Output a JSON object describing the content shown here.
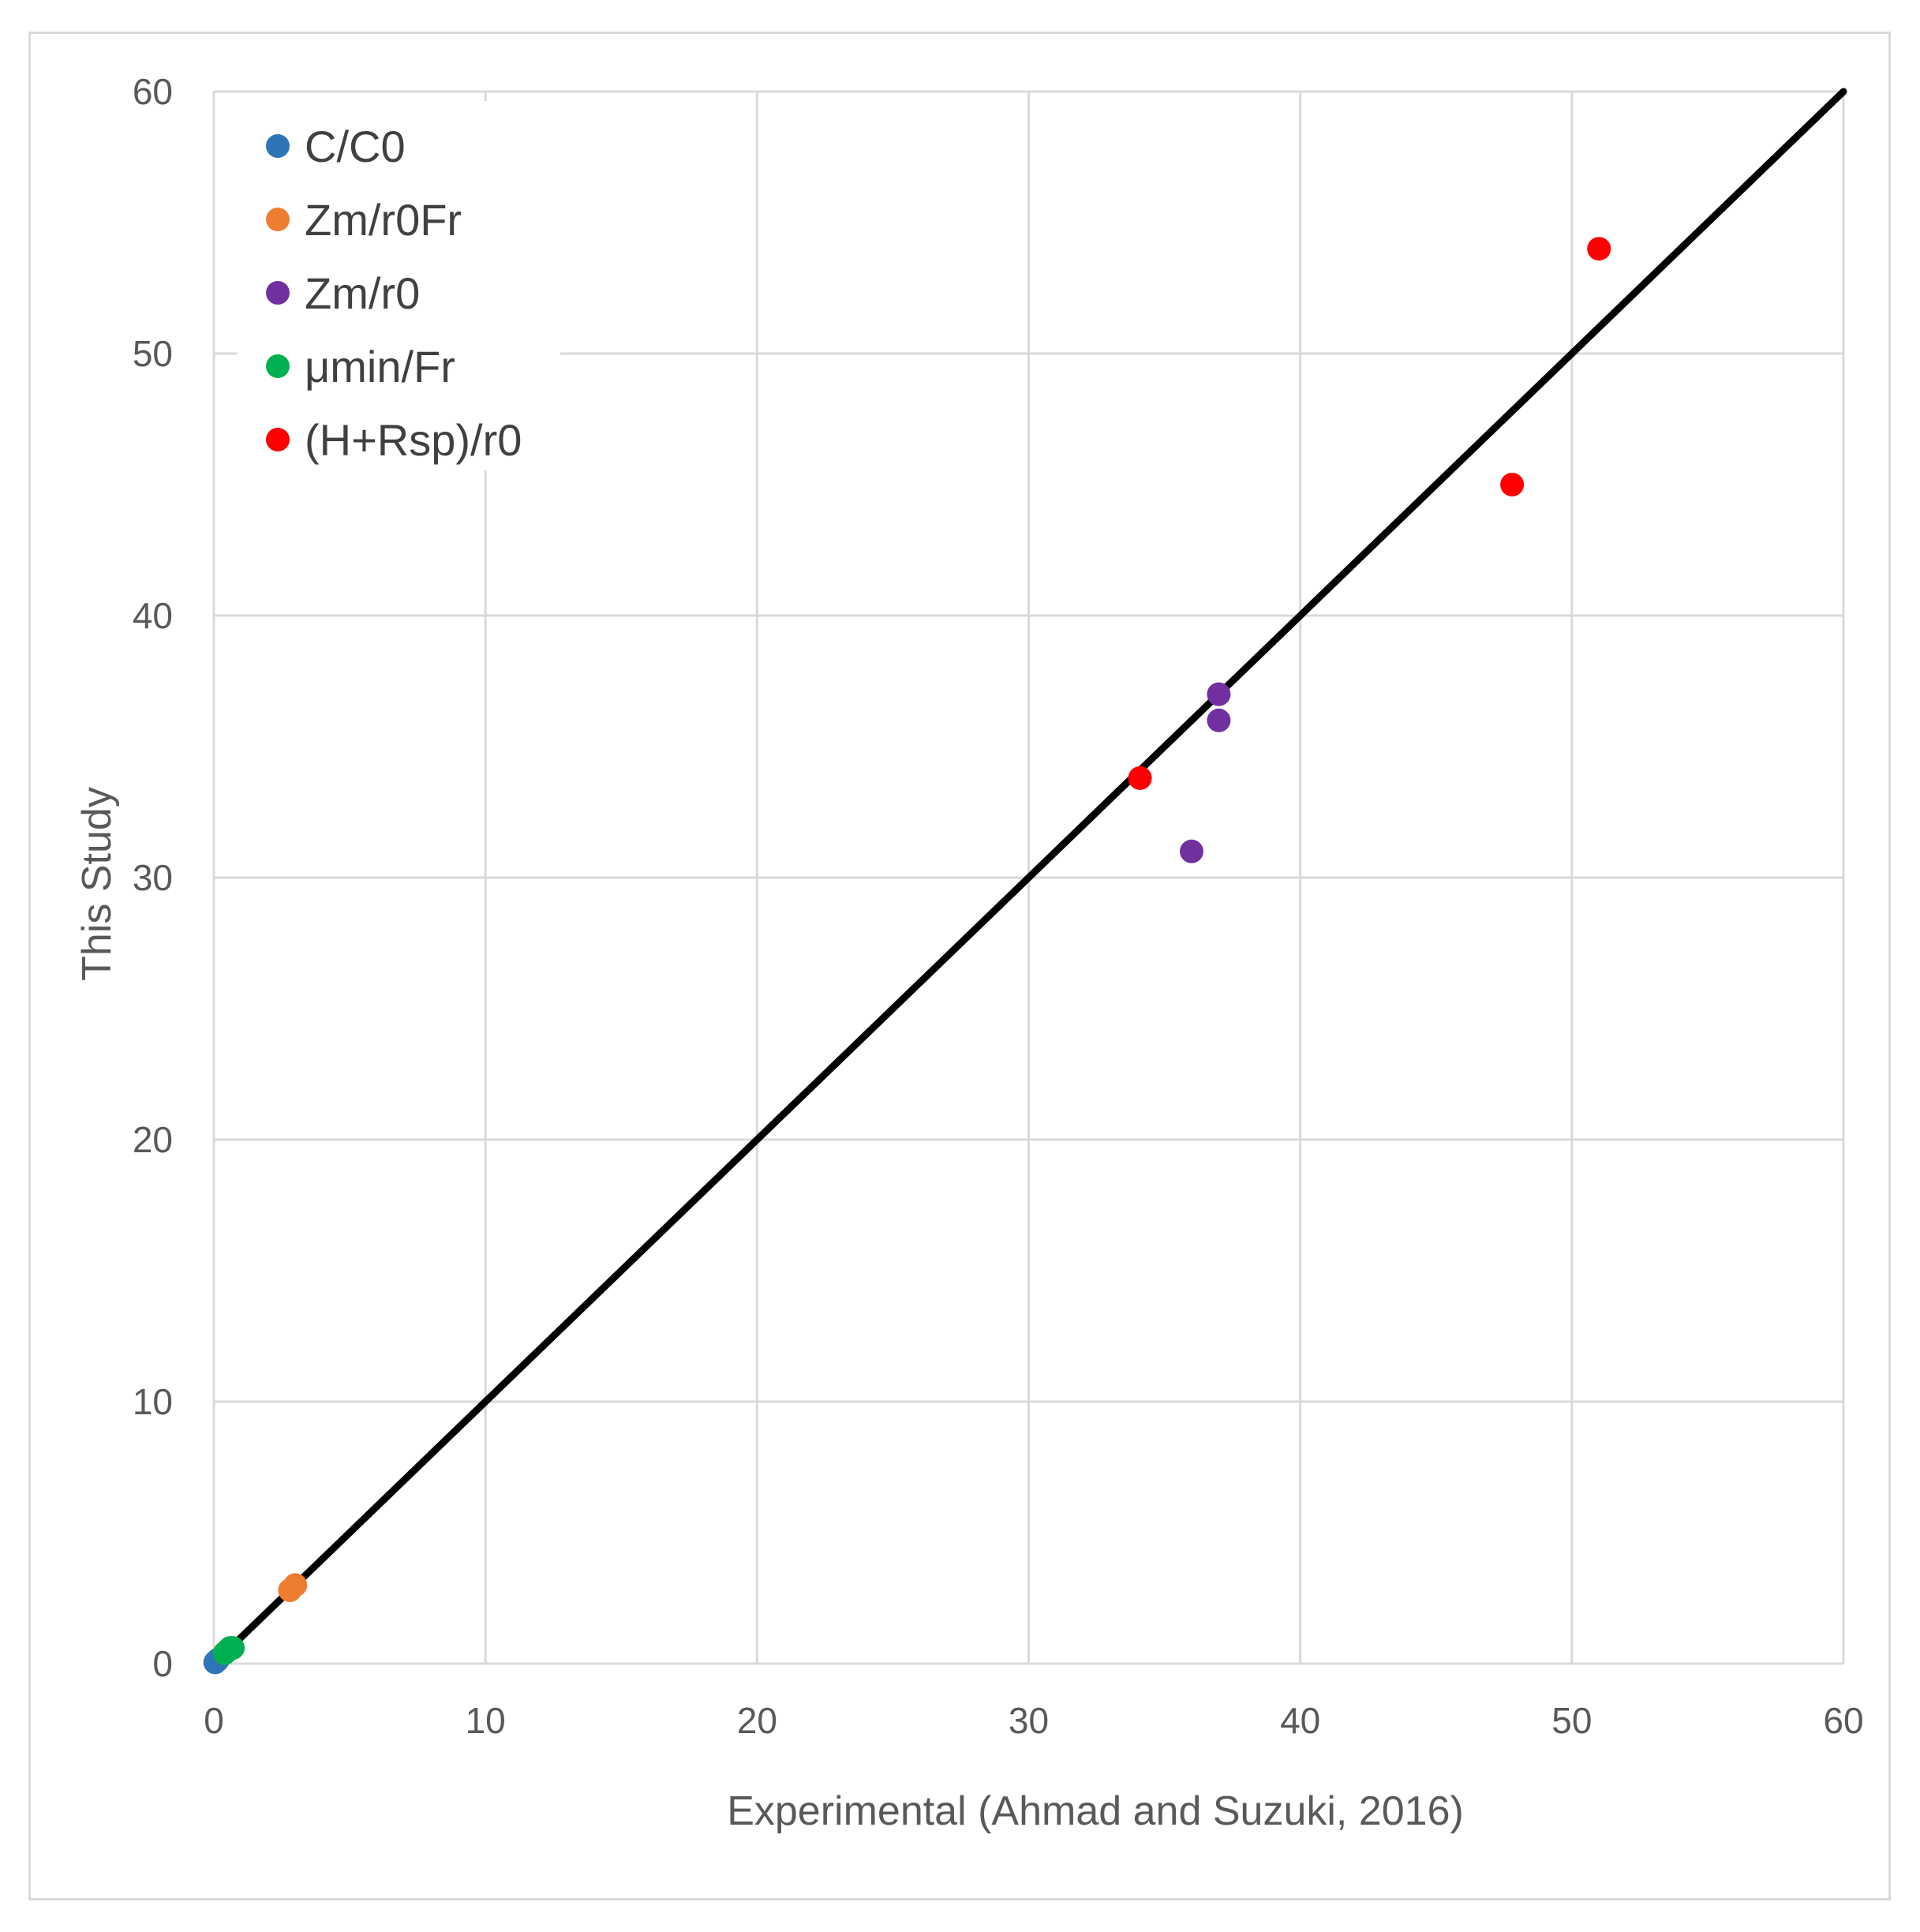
{
  "chart_data": {
    "type": "scatter",
    "title": "",
    "xlabel": "Experimental (Ahmad and Suzuki, 2016)",
    "ylabel": "This Study",
    "xlim": [
      0,
      60
    ],
    "ylim": [
      0,
      60
    ],
    "xticks": [
      "0",
      "10",
      "20",
      "30",
      "40",
      "50",
      "60"
    ],
    "yticks": [
      "0",
      "10",
      "20",
      "30",
      "40",
      "50",
      "60"
    ],
    "grid": true,
    "legend_position": "top-left",
    "reference_line": {
      "name": "1:1 line",
      "color": "#000000",
      "points": [
        [
          0,
          0
        ],
        [
          60,
          60
        ]
      ]
    },
    "series": [
      {
        "name": "C/C0",
        "color": "#2e75b6",
        "points": [
          [
            0.05,
            0.05
          ],
          [
            0.1,
            0.1
          ],
          [
            0.15,
            0.15
          ]
        ]
      },
      {
        "name": "Zm/r0Fr",
        "color": "#ed7d31",
        "points": [
          [
            2.8,
            2.8
          ],
          [
            3.0,
            3.0
          ]
        ]
      },
      {
        "name": "Zm/r0",
        "color": "#7030a0",
        "points": [
          [
            37.0,
            37.0
          ],
          [
            37.0,
            36.0
          ],
          [
            36.0,
            31.0
          ]
        ]
      },
      {
        "name": "μmin/Fr",
        "color": "#00b050",
        "points": [
          [
            0.4,
            0.4
          ],
          [
            0.5,
            0.5
          ],
          [
            0.6,
            0.6
          ],
          [
            0.7,
            0.6
          ]
        ]
      },
      {
        "name": "(H+Rsp)/r0",
        "color": "#ff0000",
        "points": [
          [
            51.0,
            54.0
          ],
          [
            47.8,
            45.0
          ],
          [
            34.1,
            33.8
          ]
        ]
      }
    ]
  }
}
